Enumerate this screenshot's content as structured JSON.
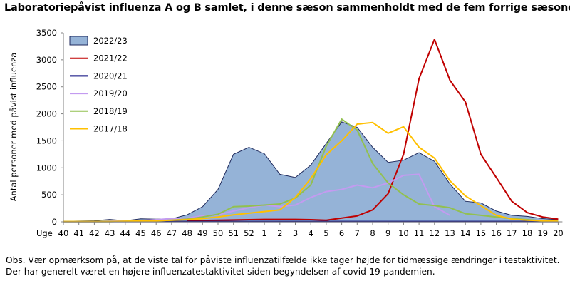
{
  "title": "Laboratoriepåvist influenza A og B samlet, i denne sæson sammenholdt med de fem forrige sæsoner",
  "note": "Obs. Vær opmærksom på, at de viste tal for påviste influenzatilfælde ikke tager højde for tidmæssige ændringer i testaktivitet. Der har generelt været en højere influenzatestaktivitet siden begyndelsen af covid-19-pandemien.",
  "chart_data": {
    "type": "line",
    "title": "Laboratoriepåvist influenza A og B samlet, i denne sæson sammenholdt med de fem forrige sæsoner",
    "ylabel": "Antal personer med påvist influenza",
    "xlabel": "Uge",
    "ylim": [
      0,
      3500
    ],
    "yticks": [
      0,
      500,
      1000,
      1500,
      2000,
      2500,
      3000,
      3500
    ],
    "grid": false,
    "legend_position": "top-left",
    "categories": [
      "40",
      "41",
      "42",
      "43",
      "44",
      "45",
      "46",
      "47",
      "48",
      "49",
      "50",
      "51",
      "52",
      "1",
      "2",
      "3",
      "4",
      "5",
      "6",
      "7",
      "8",
      "9",
      "10",
      "11",
      "12",
      "13",
      "14",
      "15",
      "16",
      "17",
      "18",
      "19",
      "20"
    ],
    "series": [
      {
        "name": "2022/23",
        "style": "area",
        "color": "#95b3d7",
        "edge": "#1f2a5c",
        "values": [
          10,
          15,
          20,
          45,
          20,
          55,
          50,
          55,
          130,
          280,
          600,
          1250,
          1380,
          1260,
          880,
          820,
          1050,
          1450,
          1850,
          1750,
          1380,
          1100,
          1140,
          1280,
          1120,
          700,
          380,
          350,
          200,
          120,
          100,
          60,
          40
        ]
      },
      {
        "name": "2021/22",
        "style": "line",
        "color": "#c00000",
        "values": [
          null,
          null,
          null,
          null,
          null,
          null,
          null,
          null,
          20,
          25,
          30,
          35,
          40,
          45,
          45,
          45,
          40,
          30,
          70,
          110,
          220,
          520,
          1250,
          2650,
          3380,
          2620,
          2220,
          1250,
          820,
          380,
          170,
          90,
          50
        ]
      },
      {
        "name": "2020/21",
        "style": "line",
        "color": "#00007a",
        "values": [
          5,
          5,
          5,
          5,
          5,
          5,
          5,
          5,
          5,
          5,
          5,
          5,
          5,
          5,
          5,
          5,
          5,
          5,
          5,
          5,
          5,
          5,
          5,
          5,
          5,
          5,
          5,
          5,
          5,
          5,
          5,
          5,
          5
        ]
      },
      {
        "name": "2019/20",
        "style": "line",
        "color": "#c39bf0",
        "values": [
          5,
          5,
          5,
          10,
          15,
          25,
          40,
          60,
          70,
          110,
          130,
          200,
          260,
          310,
          280,
          310,
          450,
          560,
          600,
          680,
          630,
          720,
          860,
          880,
          280,
          120,
          null,
          null,
          null,
          null,
          null,
          null,
          null
        ]
      },
      {
        "name": "2018/19",
        "style": "line",
        "color": "#92c050",
        "values": [
          5,
          5,
          5,
          5,
          10,
          15,
          20,
          30,
          50,
          90,
          140,
          280,
          290,
          310,
          330,
          440,
          680,
          1400,
          1900,
          1700,
          1080,
          720,
          500,
          330,
          300,
          260,
          150,
          120,
          90,
          60,
          40,
          20,
          10
        ]
      },
      {
        "name": "2017/18",
        "style": "line",
        "color": "#ffc000",
        "values": [
          5,
          5,
          5,
          5,
          10,
          15,
          20,
          30,
          40,
          60,
          90,
          130,
          160,
          190,
          220,
          450,
          800,
          1240,
          1500,
          1810,
          1840,
          1640,
          1760,
          1380,
          1180,
          760,
          480,
          300,
          120,
          50,
          30,
          20,
          10
        ]
      }
    ]
  }
}
